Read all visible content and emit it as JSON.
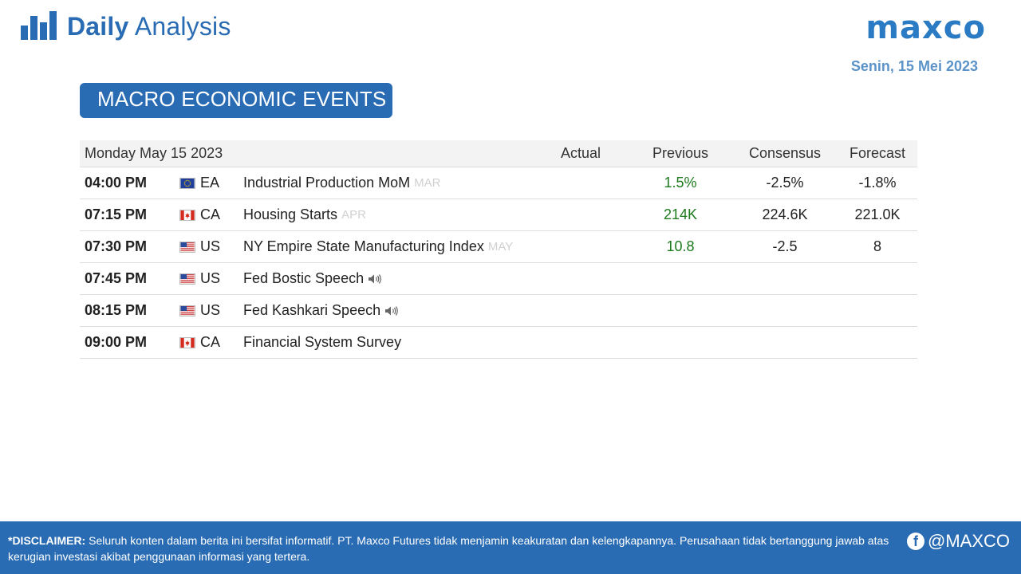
{
  "header": {
    "title_bold": "Daily",
    "title_light": "Analysis",
    "logo": "maxco",
    "date": "Senin, 15 Mei 2023"
  },
  "section": {
    "title": "MACRO ECONOMIC EVENTS"
  },
  "table": {
    "columns": {
      "date": "Monday May 15 2023",
      "actual": "Actual",
      "previous": "Previous",
      "consensus": "Consensus",
      "forecast": "Forecast"
    },
    "rows": [
      {
        "time": "04:00 PM",
        "flag": "eu-flag-icon",
        "currency": "EA",
        "event": "Industrial Production MoM",
        "period": "MAR",
        "speech": false,
        "actual": "",
        "previous": "1.5%",
        "consensus": "-2.5%",
        "forecast": "-1.8%"
      },
      {
        "time": "07:15 PM",
        "flag": "ca-flag-icon",
        "currency": "CA",
        "event": "Housing Starts",
        "period": "APR",
        "speech": false,
        "actual": "",
        "previous": "214K",
        "consensus": "224.6K",
        "forecast": "221.0K"
      },
      {
        "time": "07:30 PM",
        "flag": "us-flag-icon",
        "currency": "US",
        "event": "NY Empire State Manufacturing Index",
        "period": "MAY",
        "speech": false,
        "actual": "",
        "previous": "10.8",
        "consensus": "-2.5",
        "forecast": "8"
      },
      {
        "time": "07:45 PM",
        "flag": "us-flag-icon",
        "currency": "US",
        "event": "Fed Bostic Speech",
        "period": "",
        "speech": true,
        "actual": "",
        "previous": "",
        "consensus": "",
        "forecast": ""
      },
      {
        "time": "08:15 PM",
        "flag": "us-flag-icon",
        "currency": "US",
        "event": "Fed Kashkari Speech",
        "period": "",
        "speech": true,
        "actual": "",
        "previous": "",
        "consensus": "",
        "forecast": ""
      },
      {
        "time": "09:00 PM",
        "flag": "ca-flag-icon",
        "currency": "CA",
        "event": "Financial System Survey",
        "period": "",
        "speech": false,
        "actual": "",
        "previous": "",
        "consensus": "",
        "forecast": ""
      }
    ]
  },
  "footer": {
    "disclaimer_label": "*DISCLAIMER:",
    "disclaimer_text": "Seluruh konten dalam berita ini bersifat informatif. PT. Maxco Futures tidak menjamin keakuratan dan kelengkapannya. Perusahaan tidak bertanggung jawab atas",
    "disclaimer_text2": "kerugian investasi akibat penggunaan informasi yang tertera.",
    "social_handle": "@MAXCO"
  },
  "colors": {
    "brand_blue": "#2a6cb3",
    "logo_blue": "#2a7bc4",
    "date_blue": "#5b93c9",
    "previous_green": "#1d7a1d",
    "header_row_bg": "#f3f3f3"
  }
}
